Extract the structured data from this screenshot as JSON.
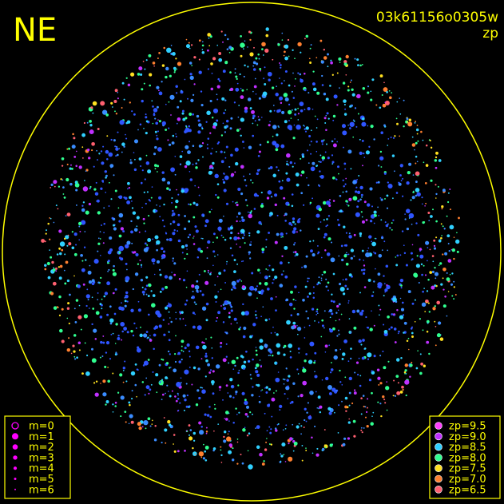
{
  "image": {
    "corner_label": "NE",
    "image_id": "03k61156o0305w",
    "subtitle": "zp"
  },
  "magnitude_legend": {
    "items": [
      "m=0",
      "m=1",
      "m=2",
      "m=3",
      "m=4",
      "m=5",
      "m=6"
    ],
    "color": "#ff00ff"
  },
  "zp_legend": {
    "items": [
      {
        "label": "zp=9.5",
        "color": "#ff40ff"
      },
      {
        "label": "zp=9.0",
        "color": "#c030ff"
      },
      {
        "label": "zp=8.5",
        "color": "#30d0ff"
      },
      {
        "label": "zp=8.0",
        "color": "#30ff90"
      },
      {
        "label": "zp=7.5",
        "color": "#ffe020"
      },
      {
        "label": "zp=7.0",
        "color": "#ff8030"
      },
      {
        "label": "zp=6.5",
        "color": "#ff6070"
      }
    ]
  }
}
